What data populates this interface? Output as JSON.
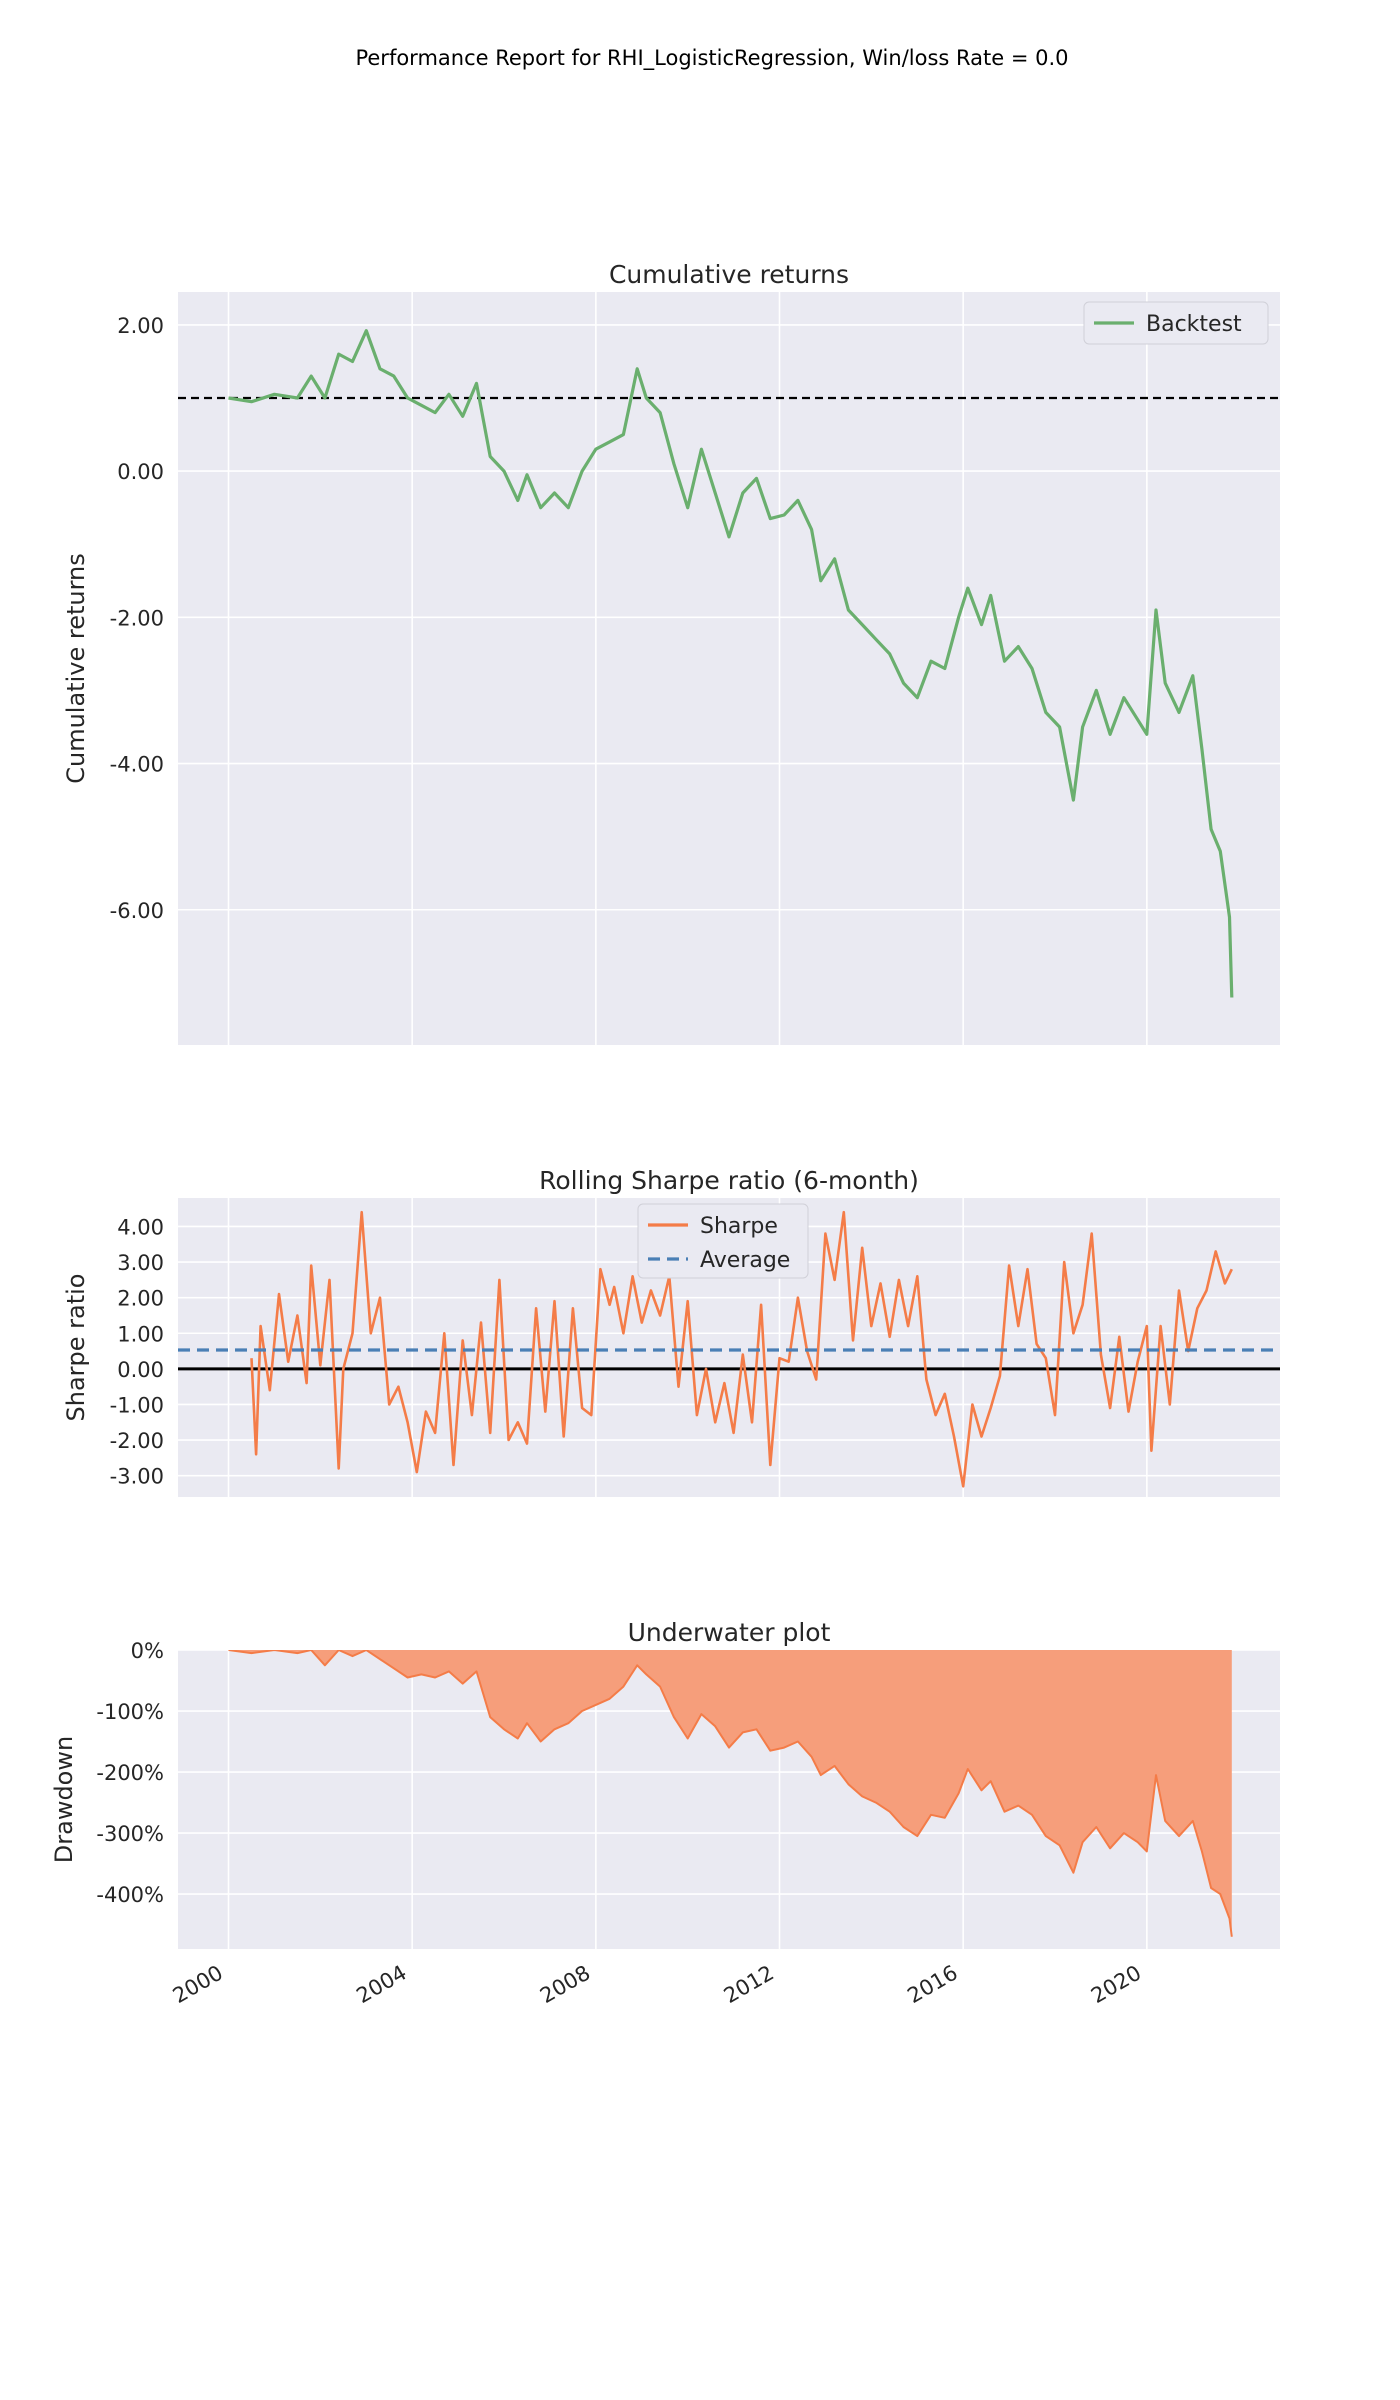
{
  "suptitle": "Performance Report for RHI_LogisticRegression, Win/loss Rate = 0.0",
  "colors": {
    "background": "#eaeaf2",
    "grid": "#ffffff",
    "backtest": "#6aaf6e",
    "sharpe": "#f47c48",
    "average": "#4a7fb5",
    "underwater_fill": "#f69e7b",
    "underwater_line": "#f47c48",
    "reference": "#000000"
  },
  "chart_data": [
    {
      "type": "line",
      "title": "Cumulative returns",
      "ylabel": "Cumulative returns",
      "xlabel": "",
      "xlim": [
        1998.9,
        2022.9
      ],
      "ylim": [
        -7.85,
        2.45
      ],
      "y_ticks": [
        2.0,
        0.0,
        -2.0,
        -4.0,
        -6.0
      ],
      "y_tick_labels": [
        "2.00",
        "0.00",
        "-2.00",
        "-4.00",
        "-6.00"
      ],
      "x_ticks": [
        2000,
        2004,
        2008,
        2012,
        2016,
        2020
      ],
      "reference_line": {
        "y": 1.0,
        "style": "dashed"
      },
      "legend": {
        "position": "top-right",
        "entries": [
          "Backtest"
        ]
      },
      "grid": true,
      "series": [
        {
          "name": "Backtest",
          "x": [
            2000.0,
            2000.5,
            2001.0,
            2001.5,
            2001.8,
            2002.1,
            2002.4,
            2002.7,
            2003.0,
            2003.3,
            2003.6,
            2003.9,
            2004.2,
            2004.5,
            2004.8,
            2005.1,
            2005.4,
            2005.7,
            2006.0,
            2006.3,
            2006.5,
            2006.8,
            2007.1,
            2007.4,
            2007.7,
            2008.0,
            2008.3,
            2008.6,
            2008.9,
            2009.1,
            2009.4,
            2009.7,
            2010.0,
            2010.3,
            2010.6,
            2010.9,
            2011.2,
            2011.5,
            2011.8,
            2012.1,
            2012.4,
            2012.7,
            2012.9,
            2013.2,
            2013.5,
            2013.8,
            2014.1,
            2014.4,
            2014.7,
            2015.0,
            2015.3,
            2015.6,
            2015.9,
            2016.1,
            2016.4,
            2016.6,
            2016.9,
            2017.2,
            2017.5,
            2017.8,
            2018.1,
            2018.4,
            2018.6,
            2018.9,
            2019.2,
            2019.5,
            2019.8,
            2020.0,
            2020.2,
            2020.4,
            2020.7,
            2021.0,
            2021.2,
            2021.4,
            2021.6,
            2021.8,
            2021.85
          ],
          "y": [
            1.0,
            0.95,
            1.05,
            1.0,
            1.3,
            1.0,
            1.6,
            1.5,
            1.92,
            1.4,
            1.3,
            1.0,
            0.9,
            0.8,
            1.05,
            0.75,
            1.2,
            0.2,
            0.0,
            -0.4,
            -0.05,
            -0.5,
            -0.3,
            -0.5,
            0.0,
            0.3,
            0.4,
            0.5,
            1.4,
            1.0,
            0.8,
            0.1,
            -0.5,
            0.3,
            -0.3,
            -0.9,
            -0.3,
            -0.1,
            -0.65,
            -0.6,
            -0.4,
            -0.8,
            -1.5,
            -1.2,
            -1.9,
            -2.1,
            -2.3,
            -2.5,
            -2.9,
            -3.1,
            -2.6,
            -2.7,
            -2.0,
            -1.6,
            -2.1,
            -1.7,
            -2.6,
            -2.4,
            -2.7,
            -3.3,
            -3.5,
            -4.5,
            -3.5,
            -3.0,
            -3.6,
            -3.1,
            -3.4,
            -3.6,
            -1.9,
            -2.9,
            -3.3,
            -2.8,
            -3.8,
            -4.9,
            -5.2,
            -6.1,
            -7.2
          ]
        }
      ]
    },
    {
      "type": "line",
      "title": "Rolling Sharpe ratio (6-month)",
      "ylabel": "Sharpe ratio",
      "xlabel": "",
      "xlim": [
        1998.9,
        2022.9
      ],
      "ylim": [
        -3.6,
        4.8
      ],
      "y_ticks": [
        4.0,
        3.0,
        2.0,
        1.0,
        0.0,
        -1.0,
        -2.0,
        -3.0
      ],
      "y_tick_labels": [
        "4.00",
        "3.00",
        "2.00",
        "1.00",
        "0.00",
        "-1.00",
        "-2.00",
        "-3.00"
      ],
      "x_ticks": [
        2000,
        2004,
        2008,
        2012,
        2016,
        2020
      ],
      "reference_line": {
        "y": 0.0,
        "style": "solid"
      },
      "legend": {
        "position": "top-center",
        "entries": [
          "Sharpe",
          "Average"
        ]
      },
      "grid": true,
      "series": [
        {
          "name": "Sharpe",
          "x": [
            2000.5,
            2000.6,
            2000.7,
            2000.9,
            2001.1,
            2001.3,
            2001.5,
            2001.7,
            2001.8,
            2002.0,
            2002.2,
            2002.4,
            2002.5,
            2002.7,
            2002.9,
            2003.1,
            2003.3,
            2003.5,
            2003.7,
            2003.9,
            2004.1,
            2004.3,
            2004.5,
            2004.7,
            2004.9,
            2005.1,
            2005.3,
            2005.5,
            2005.7,
            2005.9,
            2006.1,
            2006.3,
            2006.5,
            2006.7,
            2006.9,
            2007.1,
            2007.3,
            2007.5,
            2007.7,
            2007.9,
            2008.1,
            2008.3,
            2008.4,
            2008.6,
            2008.8,
            2009.0,
            2009.2,
            2009.4,
            2009.6,
            2009.8,
            2010.0,
            2010.2,
            2010.4,
            2010.6,
            2010.8,
            2011.0,
            2011.2,
            2011.4,
            2011.6,
            2011.8,
            2012.0,
            2012.2,
            2012.4,
            2012.6,
            2012.8,
            2013.0,
            2013.2,
            2013.4,
            2013.6,
            2013.8,
            2014.0,
            2014.2,
            2014.4,
            2014.6,
            2014.8,
            2015.0,
            2015.2,
            2015.4,
            2015.6,
            2015.8,
            2016.0,
            2016.2,
            2016.4,
            2016.6,
            2016.8,
            2017.0,
            2017.2,
            2017.4,
            2017.6,
            2017.8,
            2018.0,
            2018.2,
            2018.4,
            2018.6,
            2018.8,
            2019.0,
            2019.2,
            2019.4,
            2019.6,
            2019.8,
            2020.0,
            2020.1,
            2020.3,
            2020.5,
            2020.7,
            2020.9,
            2021.1,
            2021.3,
            2021.5,
            2021.7,
            2021.85
          ],
          "y": [
            0.3,
            -2.4,
            1.2,
            -0.6,
            2.1,
            0.2,
            1.5,
            -0.4,
            2.9,
            0.1,
            2.5,
            -2.8,
            0.0,
            1.0,
            4.4,
            1.0,
            2.0,
            -1.0,
            -0.5,
            -1.5,
            -2.9,
            -1.2,
            -1.8,
            1.0,
            -2.7,
            0.8,
            -1.3,
            1.3,
            -1.8,
            2.5,
            -2.0,
            -1.5,
            -2.1,
            1.7,
            -1.2,
            1.9,
            -1.9,
            1.7,
            -1.1,
            -1.3,
            2.8,
            1.8,
            2.3,
            1.0,
            2.6,
            1.3,
            2.2,
            1.5,
            2.6,
            -0.5,
            1.9,
            -1.3,
            0.0,
            -1.5,
            -0.4,
            -1.8,
            0.4,
            -1.5,
            1.8,
            -2.7,
            0.3,
            0.2,
            2.0,
            0.5,
            -0.3,
            3.8,
            2.5,
            4.4,
            0.8,
            3.4,
            1.2,
            2.4,
            0.9,
            2.5,
            1.2,
            2.6,
            -0.3,
            -1.3,
            -0.7,
            -1.9,
            -3.3,
            -1.0,
            -1.9,
            -1.1,
            -0.2,
            2.9,
            1.2,
            2.8,
            0.7,
            0.3,
            -1.3,
            3.0,
            1.0,
            1.8,
            3.8,
            0.4,
            -1.1,
            0.9,
            -1.2,
            0.2,
            1.2,
            -2.3,
            1.2,
            -1.0,
            2.2,
            0.5,
            1.7,
            2.2,
            3.3,
            2.4,
            2.8
          ]
        },
        {
          "name": "Average",
          "x": [
            1998.9,
            2022.9
          ],
          "y": [
            0.53,
            0.53
          ]
        }
      ]
    },
    {
      "type": "area",
      "title": "Underwater plot",
      "ylabel": "Drawdown",
      "xlabel": "",
      "xlim": [
        1998.9,
        2022.9
      ],
      "ylim": [
        -490,
        0
      ],
      "y_ticks": [
        0,
        -100,
        -200,
        -300,
        -400
      ],
      "y_tick_labels": [
        "0%",
        "-100%",
        "-200%",
        "-300%",
        "-400%"
      ],
      "x_ticks": [
        2000,
        2004,
        2008,
        2012,
        2016,
        2020
      ],
      "x_tick_labels": [
        "2000",
        "2004",
        "2008",
        "2012",
        "2016",
        "2020"
      ],
      "grid": true,
      "series": [
        {
          "name": "",
          "x": [
            2000.0,
            2000.5,
            2001.0,
            2001.5,
            2001.8,
            2002.1,
            2002.4,
            2002.7,
            2003.0,
            2003.3,
            2003.6,
            2003.9,
            2004.2,
            2004.5,
            2004.8,
            2005.1,
            2005.4,
            2005.7,
            2006.0,
            2006.3,
            2006.5,
            2006.8,
            2007.1,
            2007.4,
            2007.7,
            2008.0,
            2008.3,
            2008.6,
            2008.9,
            2009.1,
            2009.4,
            2009.7,
            2010.0,
            2010.3,
            2010.6,
            2010.9,
            2011.2,
            2011.5,
            2011.8,
            2012.1,
            2012.4,
            2012.7,
            2012.9,
            2013.2,
            2013.5,
            2013.8,
            2014.1,
            2014.4,
            2014.7,
            2015.0,
            2015.3,
            2015.6,
            2015.9,
            2016.1,
            2016.4,
            2016.6,
            2016.9,
            2017.2,
            2017.5,
            2017.8,
            2018.1,
            2018.4,
            2018.6,
            2018.9,
            2019.2,
            2019.5,
            2019.8,
            2020.0,
            2020.2,
            2020.4,
            2020.7,
            2021.0,
            2021.2,
            2021.4,
            2021.6,
            2021.8,
            2021.85
          ],
          "y": [
            0,
            -5,
            0,
            -5,
            0,
            -25,
            0,
            -10,
            0,
            -15,
            -30,
            -45,
            -40,
            -45,
            -35,
            -55,
            -35,
            -110,
            -130,
            -145,
            -120,
            -150,
            -130,
            -120,
            -100,
            -90,
            -80,
            -60,
            -25,
            -40,
            -60,
            -110,
            -145,
            -105,
            -125,
            -160,
            -135,
            -130,
            -165,
            -160,
            -150,
            -175,
            -205,
            -190,
            -220,
            -240,
            -250,
            -265,
            -290,
            -305,
            -270,
            -275,
            -235,
            -195,
            -230,
            -215,
            -265,
            -255,
            -270,
            -305,
            -320,
            -365,
            -315,
            -290,
            -325,
            -300,
            -315,
            -330,
            -205,
            -280,
            -305,
            -280,
            -330,
            -390,
            -400,
            -440,
            -470
          ]
        }
      ]
    }
  ]
}
